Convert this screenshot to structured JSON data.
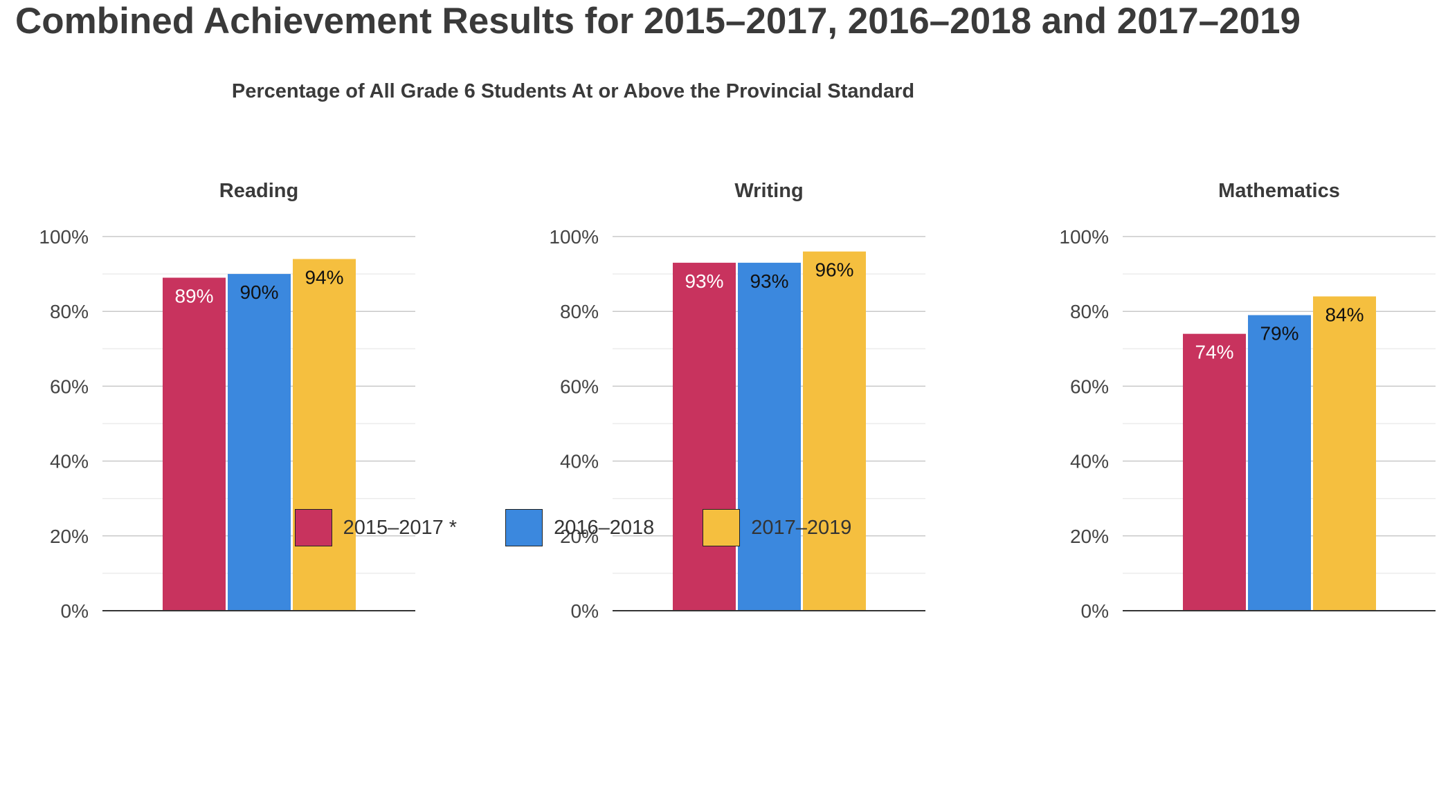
{
  "title": "Combined Achievement Results for 2015–2017, 2016–2018 and 2017–2019",
  "subtitle": "Percentage of All Grade 6 Students At or Above the Provincial Standard",
  "colors": {
    "series_1": "#c8335e",
    "series_2": "#3b88de",
    "series_3": "#f5bf3f",
    "grid": "#c8c8c8",
    "minor_grid": "#ececec",
    "axis": "#333333"
  },
  "legend": [
    {
      "label": "2015–2017 *",
      "color": "#c8335e"
    },
    {
      "label": "2016–2018",
      "color": "#3b88de"
    },
    {
      "label": "2017–2019",
      "color": "#f5bf3f"
    }
  ],
  "chart_data": [
    {
      "type": "bar",
      "title": "Reading",
      "categories": [
        ""
      ],
      "series": [
        {
          "name": "2015–2017 *",
          "values": [
            89
          ],
          "labels": [
            "89%"
          ],
          "label_color": "#ffffff"
        },
        {
          "name": "2016–2018",
          "values": [
            90
          ],
          "labels": [
            "90%"
          ],
          "label_color": "#111111"
        },
        {
          "name": "2017–2019",
          "values": [
            94
          ],
          "labels": [
            "94%"
          ],
          "label_color": "#111111"
        }
      ],
      "ylim": [
        0,
        100
      ],
      "yticks": [
        "0%",
        "20%",
        "40%",
        "60%",
        "80%",
        "100%"
      ],
      "grid": true
    },
    {
      "type": "bar",
      "title": "Writing",
      "categories": [
        ""
      ],
      "series": [
        {
          "name": "2015–2017 *",
          "values": [
            93
          ],
          "labels": [
            "93%"
          ],
          "label_color": "#ffffff"
        },
        {
          "name": "2016–2018",
          "values": [
            93
          ],
          "labels": [
            "93%"
          ],
          "label_color": "#111111"
        },
        {
          "name": "2017–2019",
          "values": [
            96
          ],
          "labels": [
            "96%"
          ],
          "label_color": "#111111"
        }
      ],
      "ylim": [
        0,
        100
      ],
      "yticks": [
        "0%",
        "20%",
        "40%",
        "60%",
        "80%",
        "100%"
      ],
      "grid": true
    },
    {
      "type": "bar",
      "title": "Mathematics",
      "categories": [
        ""
      ],
      "series": [
        {
          "name": "2015–2017 *",
          "values": [
            74
          ],
          "labels": [
            "74%"
          ],
          "label_color": "#ffffff"
        },
        {
          "name": "2016–2018",
          "values": [
            79
          ],
          "labels": [
            "79%"
          ],
          "label_color": "#111111"
        },
        {
          "name": "2017–2019",
          "values": [
            84
          ],
          "labels": [
            "84%"
          ],
          "label_color": "#111111"
        }
      ],
      "ylim": [
        0,
        100
      ],
      "yticks": [
        "0%",
        "20%",
        "40%",
        "60%",
        "80%",
        "100%"
      ],
      "grid": true
    }
  ]
}
